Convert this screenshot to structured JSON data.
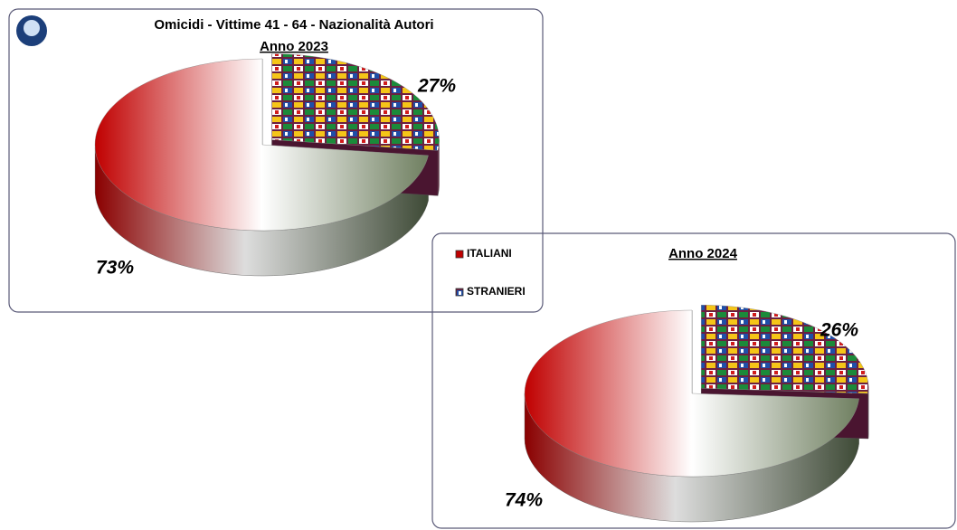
{
  "chart_data": [
    {
      "type": "pie",
      "title": "Omicidi - Vittime 41 - 64 - Nazionalità Autori",
      "subtitle": "Anno 2023",
      "categories": [
        "ITALIANI",
        "STRANIERI"
      ],
      "values": [
        73,
        27
      ],
      "value_labels": [
        "73%",
        "27%"
      ],
      "colors": [
        "#c00000",
        "#6a2040"
      ]
    },
    {
      "type": "pie",
      "subtitle": "Anno 2024",
      "values": [
        74,
        26
      ],
      "value_labels": [
        "74%",
        "26%"
      ],
      "colors": [
        "#c00000",
        "#6a2040"
      ]
    }
  ]
}
